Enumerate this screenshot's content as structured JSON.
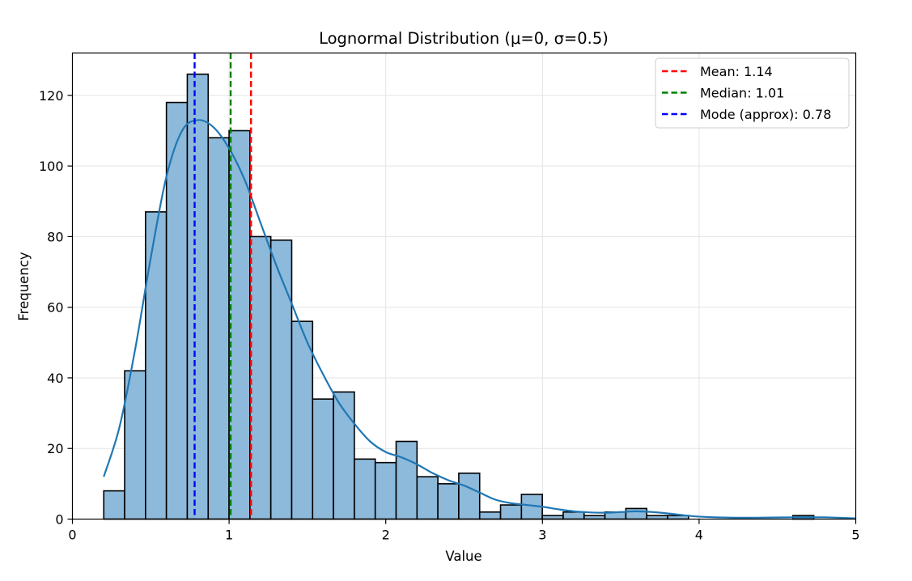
{
  "chart_data": {
    "type": "bar",
    "title": "Lognormal Distribution (μ=0, σ=0.5)",
    "xlabel": "Value",
    "ylabel": "Frequency",
    "xlim": [
      0,
      5
    ],
    "ylim": [
      0,
      132
    ],
    "grid": true,
    "x_ticks": [
      0,
      1,
      2,
      3,
      4,
      5
    ],
    "x_tick_labels": [
      "0",
      "1",
      "2",
      "3",
      "4",
      "5"
    ],
    "y_ticks": [
      0,
      20,
      40,
      60,
      80,
      100,
      120
    ],
    "y_tick_labels": [
      "0",
      "20",
      "40",
      "60",
      "80",
      "100",
      "120"
    ],
    "bin_start": 0.2,
    "bin_width": 0.1333,
    "counts": [
      8,
      42,
      87,
      118,
      126,
      108,
      110,
      80,
      79,
      56,
      34,
      36,
      17,
      16,
      22,
      12,
      10,
      13,
      2,
      4,
      7,
      1,
      2,
      1,
      2,
      3,
      1,
      1,
      0,
      0,
      0,
      0,
      0,
      1
    ],
    "kde": {
      "x": [
        0.2,
        0.3,
        0.4,
        0.5,
        0.6,
        0.7,
        0.8,
        0.9,
        1.0,
        1.1,
        1.2,
        1.3,
        1.4,
        1.5,
        1.6,
        1.7,
        1.8,
        1.9,
        2.0,
        2.1,
        2.2,
        2.3,
        2.4,
        2.5,
        2.6,
        2.7,
        2.8,
        2.9,
        3.0,
        3.1,
        3.2,
        3.3,
        3.4,
        3.5,
        3.6,
        3.7,
        3.8,
        3.9,
        4.0,
        4.2,
        4.4,
        4.6,
        4.8,
        5.0
      ],
      "y": [
        12,
        26,
        48,
        74,
        97,
        110,
        113,
        111,
        105,
        96,
        84,
        72,
        61,
        50,
        41,
        33,
        27,
        22,
        19,
        17.5,
        15.5,
        13,
        11,
        9.5,
        7.5,
        5.5,
        4.5,
        4,
        3.5,
        2.8,
        2.2,
        1.9,
        1.8,
        2,
        2.2,
        2,
        1.6,
        1.1,
        0.7,
        0.4,
        0.4,
        0.5,
        0.5,
        0.2
      ]
    },
    "reference_lines": [
      {
        "name": "mean",
        "label": "Mean: 1.14",
        "value": 1.14,
        "color": "#ff0000"
      },
      {
        "name": "median",
        "label": "Median: 1.01",
        "value": 1.01,
        "color": "#008000"
      },
      {
        "name": "mode",
        "label": "Mode (approx): 0.78",
        "value": 0.78,
        "color": "#0000ff"
      }
    ],
    "legend_position": "top-right",
    "colors": {
      "bar_fill": "#8db9da",
      "bar_edge": "#000000",
      "kde_line": "#1f77b4"
    }
  }
}
